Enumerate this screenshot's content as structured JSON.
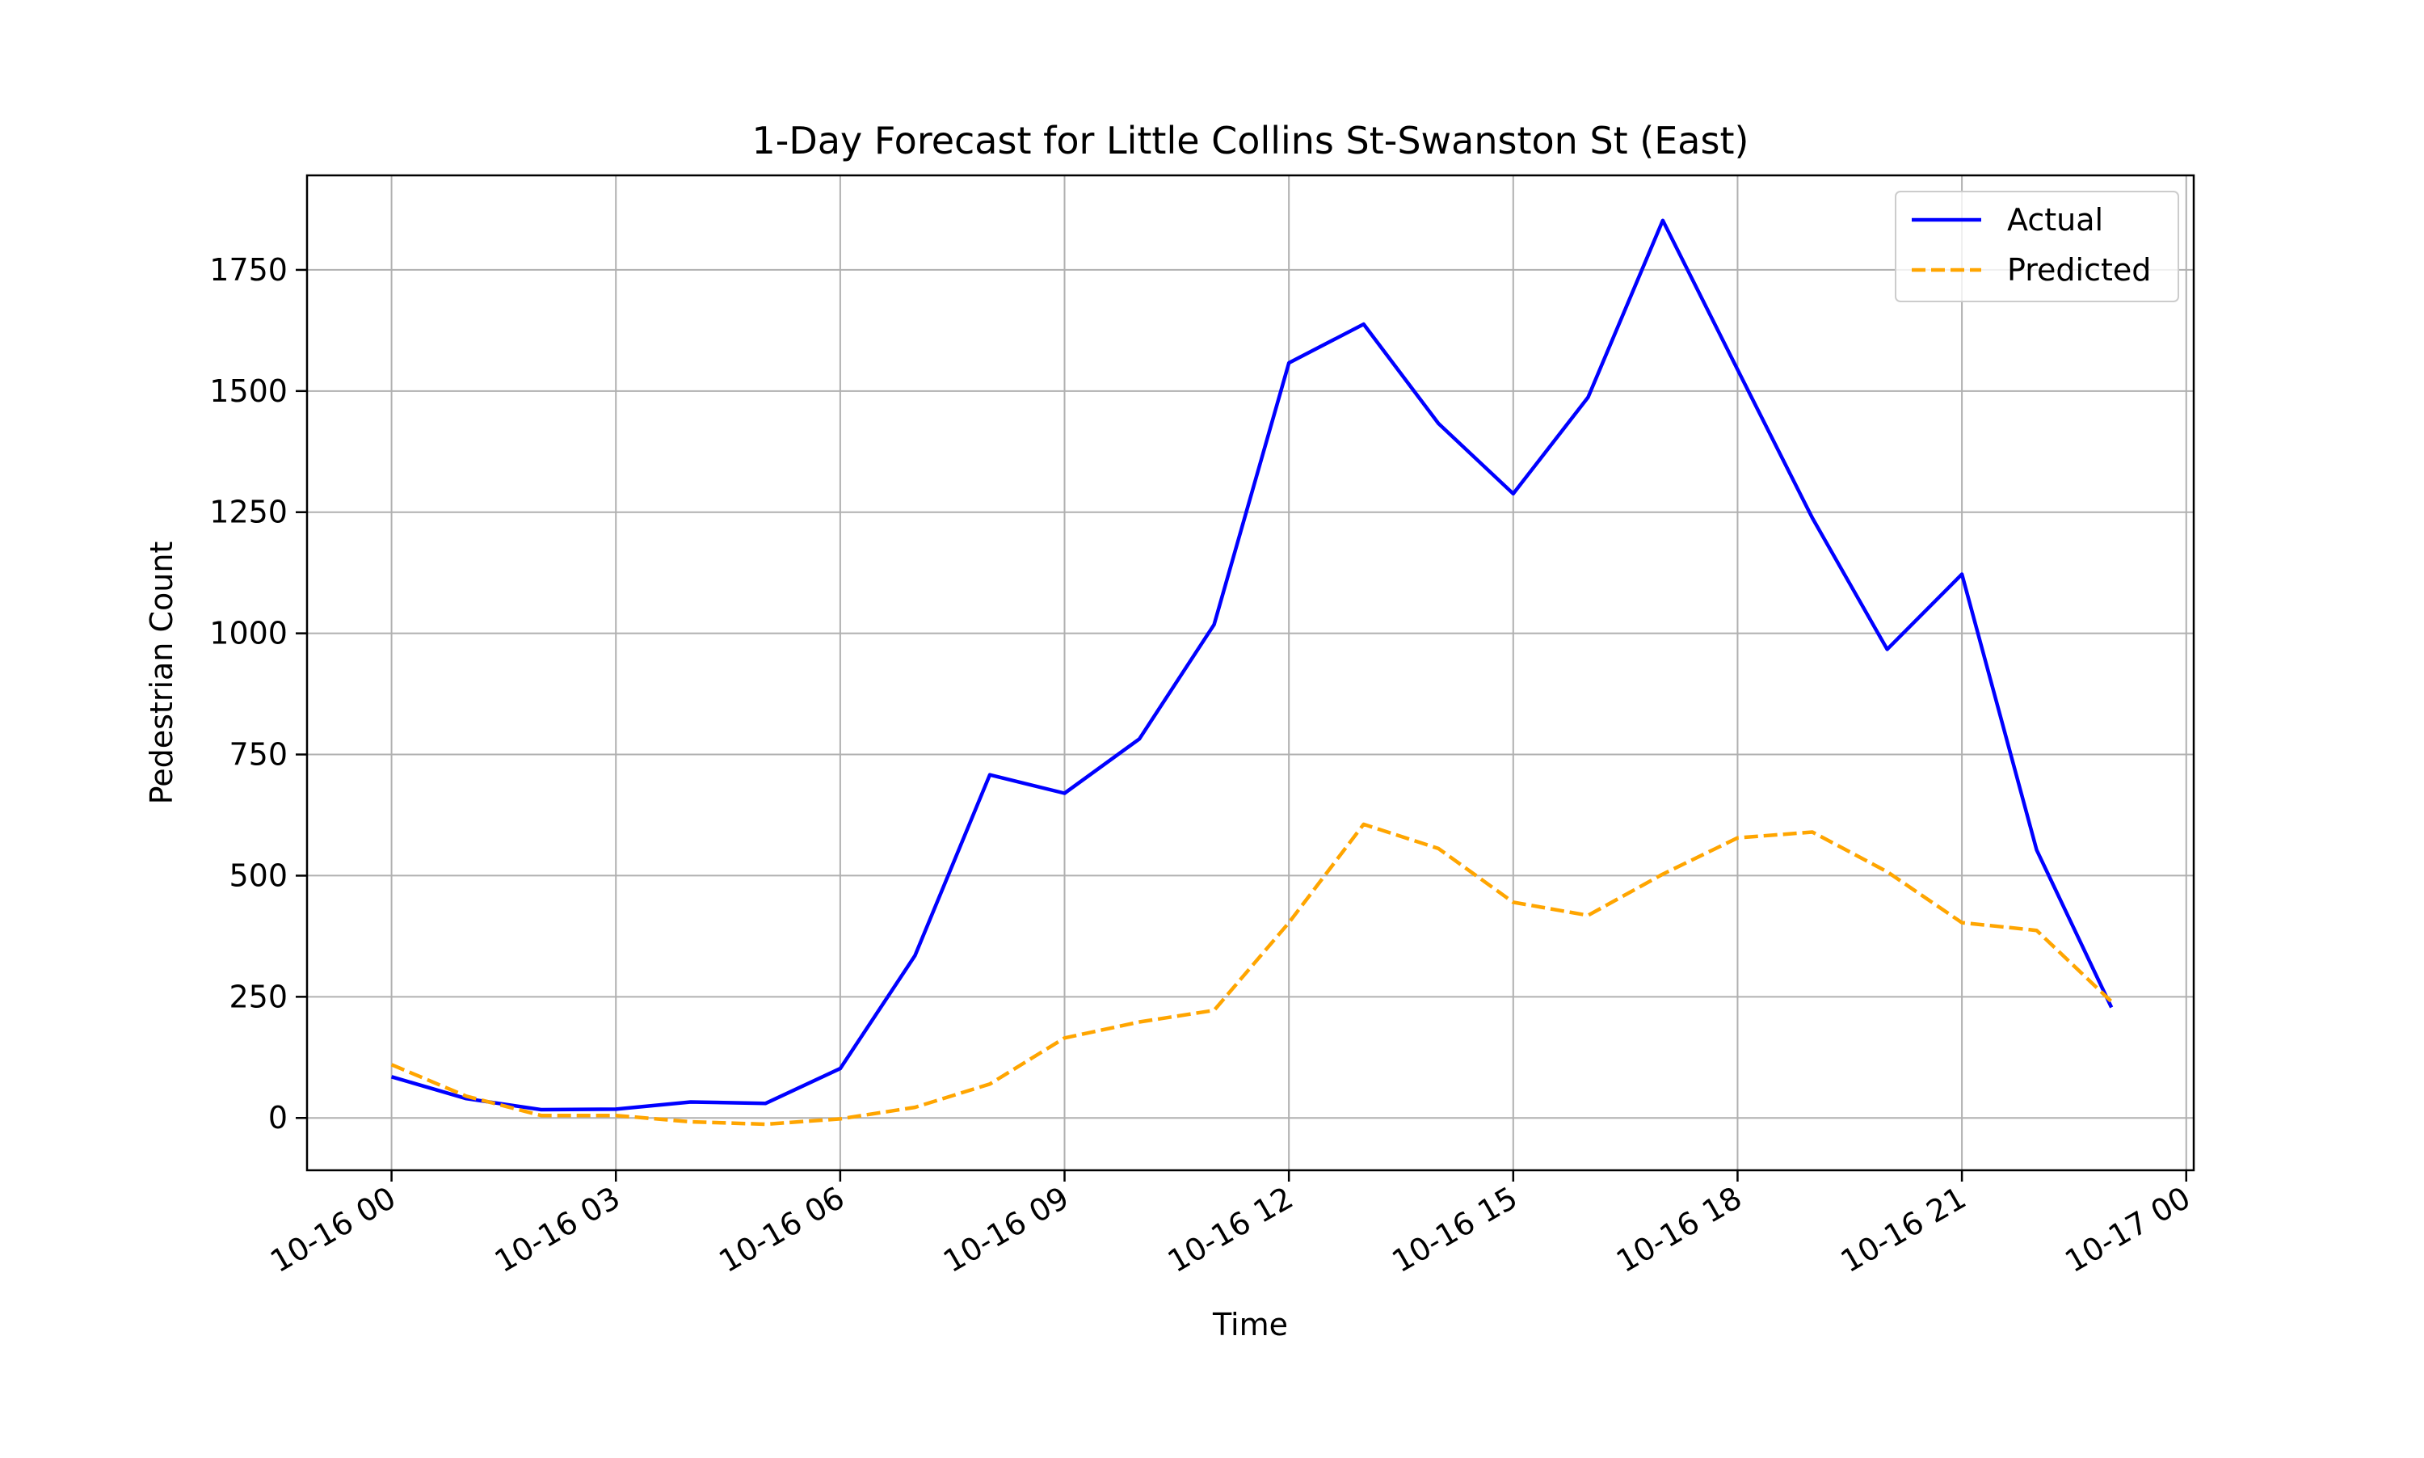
{
  "chart_data": {
    "type": "line",
    "title": "1-Day Forecast for Little Collins St-Swanston St (East)",
    "xlabel": "Time",
    "ylabel": "Pedestrian Count",
    "x": [
      0,
      1,
      2,
      3,
      4,
      5,
      6,
      7,
      8,
      9,
      10,
      11,
      12,
      13,
      14,
      15,
      16,
      17,
      18,
      19,
      20,
      21,
      22,
      23
    ],
    "x_ticks": [
      {
        "hour": 0,
        "label": "10-16 00"
      },
      {
        "hour": 3,
        "label": "10-16 03"
      },
      {
        "hour": 6,
        "label": "10-16 06"
      },
      {
        "hour": 9,
        "label": "10-16 09"
      },
      {
        "hour": 12,
        "label": "10-16 12"
      },
      {
        "hour": 15,
        "label": "10-16 15"
      },
      {
        "hour": 18,
        "label": "10-16 18"
      },
      {
        "hour": 21,
        "label": "10-16 21"
      },
      {
        "hour": 24,
        "label": "10-17 00"
      }
    ],
    "xlim": [
      -1.13,
      24.1
    ],
    "ylim": [
      -108,
      1945
    ],
    "y_ticks": [
      0,
      250,
      500,
      750,
      1000,
      1250,
      1500,
      1750
    ],
    "grid": true,
    "legend_position": "top-right",
    "series": [
      {
        "name": "Actual",
        "color": "#0000ff",
        "style": "solid",
        "values": [
          85,
          40,
          17,
          18,
          33,
          30,
          102,
          335,
          708,
          670,
          782,
          1018,
          1558,
          1638,
          1433,
          1288,
          1487,
          1852,
          1544,
          1238,
          967,
          1122,
          553,
          228
        ]
      },
      {
        "name": "Predicted",
        "color": "#ffa500",
        "style": "dashed",
        "values": [
          110,
          45,
          5,
          5,
          -8,
          -13,
          -2,
          22,
          70,
          165,
          198,
          222,
          403,
          606,
          556,
          445,
          418,
          503,
          578,
          590,
          508,
          403,
          387,
          240
        ]
      }
    ]
  }
}
